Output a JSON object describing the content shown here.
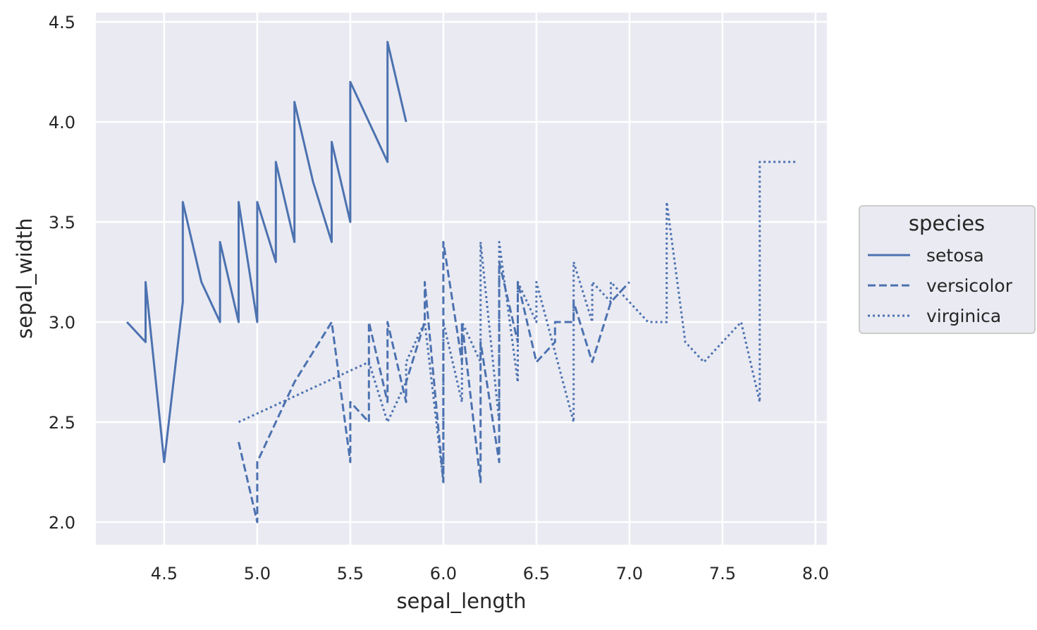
{
  "chart_data": {
    "type": "line",
    "title": "",
    "xlabel": "sepal_length",
    "ylabel": "sepal_width",
    "xlim": [
      4.133,
      8.061
    ],
    "ylim": [
      1.887,
      4.546
    ],
    "xticks": [
      4.5,
      5.0,
      5.5,
      6.0,
      6.5,
      7.0,
      7.5,
      8.0
    ],
    "xtick_labels": [
      "4.5",
      "5.0",
      "5.5",
      "6.0",
      "6.5",
      "7.0",
      "7.5",
      "8.0"
    ],
    "yticks": [
      2.0,
      2.5,
      3.0,
      3.5,
      4.0,
      4.5
    ],
    "ytick_labels": [
      "2.0",
      "2.5",
      "3.0",
      "3.5",
      "4.0",
      "4.5"
    ],
    "grid": true,
    "color": "#4c72b0",
    "background": "#eaeaf2",
    "legend": {
      "title": "species",
      "placement": "outside-right"
    },
    "series": [
      {
        "name": "setosa",
        "style": "solid",
        "points": [
          [
            5.1,
            3.5
          ],
          [
            4.9,
            3.0
          ],
          [
            4.7,
            3.2
          ],
          [
            4.6,
            3.1
          ],
          [
            5.0,
            3.6
          ],
          [
            5.4,
            3.9
          ],
          [
            4.6,
            3.4
          ],
          [
            5.0,
            3.4
          ],
          [
            4.4,
            2.9
          ],
          [
            4.9,
            3.1
          ],
          [
            5.4,
            3.7
          ],
          [
            4.8,
            3.4
          ],
          [
            4.8,
            3.0
          ],
          [
            4.3,
            3.0
          ],
          [
            5.8,
            4.0
          ],
          [
            5.7,
            4.4
          ],
          [
            5.4,
            3.9
          ],
          [
            5.1,
            3.5
          ],
          [
            5.7,
            3.8
          ],
          [
            5.1,
            3.8
          ],
          [
            5.4,
            3.4
          ],
          [
            5.1,
            3.7
          ],
          [
            4.6,
            3.6
          ],
          [
            5.1,
            3.3
          ],
          [
            4.8,
            3.4
          ],
          [
            5.0,
            3.0
          ],
          [
            5.0,
            3.4
          ],
          [
            5.2,
            3.5
          ],
          [
            5.2,
            3.4
          ],
          [
            4.7,
            3.2
          ],
          [
            4.8,
            3.1
          ],
          [
            5.4,
            3.4
          ],
          [
            5.2,
            4.1
          ],
          [
            5.5,
            4.2
          ],
          [
            4.9,
            3.1
          ],
          [
            5.0,
            3.2
          ],
          [
            5.5,
            3.5
          ],
          [
            4.9,
            3.6
          ],
          [
            4.4,
            3.0
          ],
          [
            5.1,
            3.4
          ],
          [
            5.0,
            3.5
          ],
          [
            4.5,
            2.3
          ],
          [
            4.4,
            3.2
          ],
          [
            5.0,
            3.5
          ],
          [
            5.1,
            3.8
          ],
          [
            4.8,
            3.0
          ],
          [
            5.1,
            3.8
          ],
          [
            4.6,
            3.2
          ],
          [
            5.3,
            3.7
          ],
          [
            5.0,
            3.3
          ]
        ]
      },
      {
        "name": "versicolor",
        "style": "dashed",
        "points": [
          [
            7.0,
            3.2
          ],
          [
            6.4,
            3.2
          ],
          [
            6.9,
            3.1
          ],
          [
            5.5,
            2.3
          ],
          [
            6.5,
            2.8
          ],
          [
            5.7,
            2.8
          ],
          [
            6.3,
            3.3
          ],
          [
            4.9,
            2.4
          ],
          [
            6.6,
            2.9
          ],
          [
            5.2,
            2.7
          ],
          [
            5.0,
            2.0
          ],
          [
            5.9,
            3.0
          ],
          [
            6.0,
            2.2
          ],
          [
            6.1,
            2.9
          ],
          [
            5.6,
            2.9
          ],
          [
            6.7,
            3.1
          ],
          [
            5.6,
            3.0
          ],
          [
            5.8,
            2.7
          ],
          [
            6.2,
            2.2
          ],
          [
            5.6,
            2.5
          ],
          [
            5.9,
            3.2
          ],
          [
            6.1,
            2.8
          ],
          [
            6.3,
            2.5
          ],
          [
            6.1,
            2.8
          ],
          [
            6.4,
            2.9
          ],
          [
            6.6,
            3.0
          ],
          [
            6.8,
            2.8
          ],
          [
            6.7,
            3.0
          ],
          [
            6.0,
            2.9
          ],
          [
            5.7,
            2.6
          ],
          [
            5.5,
            2.4
          ],
          [
            5.5,
            2.4
          ],
          [
            5.8,
            2.7
          ],
          [
            6.0,
            2.7
          ],
          [
            5.4,
            3.0
          ],
          [
            6.0,
            3.4
          ],
          [
            6.7,
            3.1
          ],
          [
            6.3,
            2.3
          ],
          [
            5.6,
            3.0
          ],
          [
            5.5,
            2.5
          ],
          [
            5.5,
            2.6
          ],
          [
            6.1,
            3.0
          ],
          [
            5.8,
            2.6
          ],
          [
            5.0,
            2.3
          ],
          [
            5.6,
            2.7
          ],
          [
            5.7,
            3.0
          ],
          [
            5.7,
            2.9
          ],
          [
            6.2,
            2.9
          ],
          [
            5.1,
            2.5
          ],
          [
            5.7,
            2.8
          ]
        ]
      },
      {
        "name": "virginica",
        "style": "dotted",
        "points": [
          [
            6.3,
            3.3
          ],
          [
            5.8,
            2.7
          ],
          [
            7.1,
            3.0
          ],
          [
            6.3,
            2.9
          ],
          [
            6.5,
            3.0
          ],
          [
            7.6,
            3.0
          ],
          [
            4.9,
            2.5
          ],
          [
            7.3,
            2.9
          ],
          [
            6.7,
            2.5
          ],
          [
            7.2,
            3.6
          ],
          [
            6.5,
            3.2
          ],
          [
            6.4,
            2.7
          ],
          [
            6.8,
            3.0
          ],
          [
            5.7,
            2.5
          ],
          [
            5.8,
            2.8
          ],
          [
            6.4,
            3.2
          ],
          [
            6.5,
            3.0
          ],
          [
            7.7,
            3.8
          ],
          [
            7.7,
            2.6
          ],
          [
            6.0,
            2.2
          ],
          [
            6.9,
            3.2
          ],
          [
            5.6,
            2.8
          ],
          [
            7.7,
            2.8
          ],
          [
            6.3,
            2.7
          ],
          [
            6.7,
            3.3
          ],
          [
            7.2,
            3.2
          ],
          [
            6.2,
            2.8
          ],
          [
            6.1,
            3.0
          ],
          [
            6.4,
            2.8
          ],
          [
            7.2,
            3.0
          ],
          [
            7.4,
            2.8
          ],
          [
            7.9,
            3.8
          ],
          [
            6.4,
            2.8
          ],
          [
            6.3,
            2.8
          ],
          [
            6.1,
            2.6
          ],
          [
            7.7,
            3.0
          ],
          [
            6.3,
            3.4
          ],
          [
            6.4,
            3.1
          ],
          [
            6.0,
            3.0
          ],
          [
            6.9,
            3.1
          ],
          [
            6.7,
            3.1
          ],
          [
            6.9,
            3.1
          ],
          [
            5.8,
            2.7
          ],
          [
            6.8,
            3.2
          ],
          [
            6.7,
            3.3
          ],
          [
            6.7,
            3.0
          ],
          [
            6.3,
            2.5
          ],
          [
            6.5,
            3.0
          ],
          [
            6.2,
            3.4
          ],
          [
            5.9,
            3.0
          ]
        ]
      }
    ]
  }
}
